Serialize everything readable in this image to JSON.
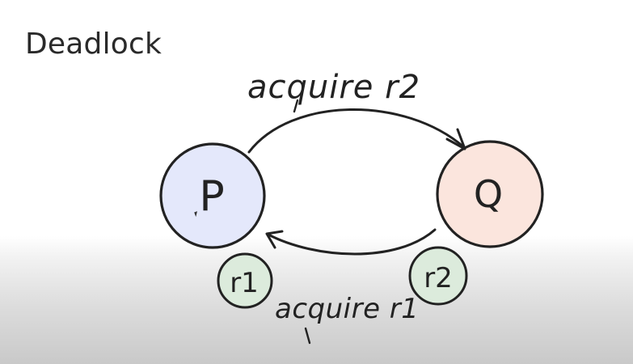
{
  "slide": {
    "title": "Deadlock"
  },
  "diagram": {
    "nodes": [
      {
        "id": "P",
        "label": "P",
        "fill": "#e4e8fb"
      },
      {
        "id": "Q",
        "label": "Q",
        "fill": "#fbe5dd"
      }
    ],
    "resources": [
      {
        "id": "r1",
        "label": "r1",
        "fill": "#dcebdc"
      },
      {
        "id": "r2",
        "label": "r2",
        "fill": "#dcebdc"
      }
    ],
    "edges": [
      {
        "from": "P",
        "to": "Q",
        "label": "acquire r2"
      },
      {
        "from": "Q",
        "to": "P",
        "label": "acquire r1"
      }
    ]
  },
  "colors": {
    "stroke": "#222222",
    "process_p_fill": "#e4e8fb",
    "process_q_fill": "#fbe5dd",
    "resource_fill": "#dcebdc"
  }
}
